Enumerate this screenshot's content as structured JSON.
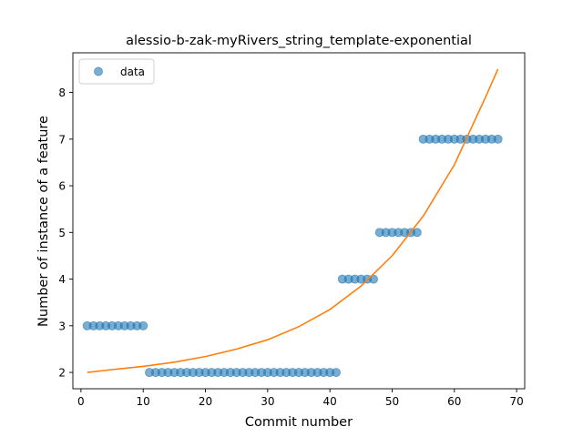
{
  "chart_data": {
    "type": "scatter",
    "title": "alessio-b-zak-myRivers_string_template-exponential",
    "xlabel": "Commit number",
    "ylabel": "Number of instance of a feature",
    "xlim": [
      -1.3,
      71.3
    ],
    "ylim": [
      1.65,
      8.85
    ],
    "xticks": [
      0,
      10,
      20,
      30,
      40,
      50,
      60,
      70
    ],
    "yticks": [
      2,
      3,
      4,
      5,
      6,
      7,
      8
    ],
    "grid": false,
    "legend": {
      "placement": "top-left",
      "entries": [
        "data"
      ]
    },
    "series": [
      {
        "name": "data",
        "kind": "scatter",
        "color": "#1f77b4",
        "points": [
          [
            1,
            3
          ],
          [
            2,
            3
          ],
          [
            3,
            3
          ],
          [
            4,
            3
          ],
          [
            5,
            3
          ],
          [
            6,
            3
          ],
          [
            7,
            3
          ],
          [
            8,
            3
          ],
          [
            9,
            3
          ],
          [
            10,
            3
          ],
          [
            11,
            2
          ],
          [
            12,
            2
          ],
          [
            13,
            2
          ],
          [
            14,
            2
          ],
          [
            15,
            2
          ],
          [
            16,
            2
          ],
          [
            17,
            2
          ],
          [
            18,
            2
          ],
          [
            19,
            2
          ],
          [
            20,
            2
          ],
          [
            21,
            2
          ],
          [
            22,
            2
          ],
          [
            23,
            2
          ],
          [
            24,
            2
          ],
          [
            25,
            2
          ],
          [
            26,
            2
          ],
          [
            27,
            2
          ],
          [
            28,
            2
          ],
          [
            29,
            2
          ],
          [
            30,
            2
          ],
          [
            31,
            2
          ],
          [
            32,
            2
          ],
          [
            33,
            2
          ],
          [
            34,
            2
          ],
          [
            35,
            2
          ],
          [
            36,
            2
          ],
          [
            37,
            2
          ],
          [
            38,
            2
          ],
          [
            39,
            2
          ],
          [
            40,
            2
          ],
          [
            41,
            2
          ],
          [
            42,
            4
          ],
          [
            43,
            4
          ],
          [
            44,
            4
          ],
          [
            45,
            4
          ],
          [
            46,
            4
          ],
          [
            47,
            4
          ],
          [
            48,
            5
          ],
          [
            49,
            5
          ],
          [
            50,
            5
          ],
          [
            51,
            5
          ],
          [
            52,
            5
          ],
          [
            53,
            5
          ],
          [
            54,
            5
          ],
          [
            55,
            7
          ],
          [
            56,
            7
          ],
          [
            57,
            7
          ],
          [
            58,
            7
          ],
          [
            59,
            7
          ],
          [
            60,
            7
          ],
          [
            61,
            7
          ],
          [
            62,
            7
          ],
          [
            63,
            7
          ],
          [
            64,
            7
          ],
          [
            65,
            7
          ],
          [
            66,
            7
          ],
          [
            67,
            7
          ]
        ]
      },
      {
        "kind": "line",
        "color": "#ff7f0e",
        "x": [
          1,
          5,
          10,
          15,
          20,
          25,
          30,
          35,
          40,
          45,
          50,
          55,
          60,
          65,
          67
        ],
        "y": [
          2.0,
          2.06,
          2.13,
          2.22,
          2.34,
          2.5,
          2.7,
          2.98,
          3.35,
          3.85,
          4.5,
          5.35,
          6.45,
          7.9,
          8.5
        ]
      }
    ]
  }
}
